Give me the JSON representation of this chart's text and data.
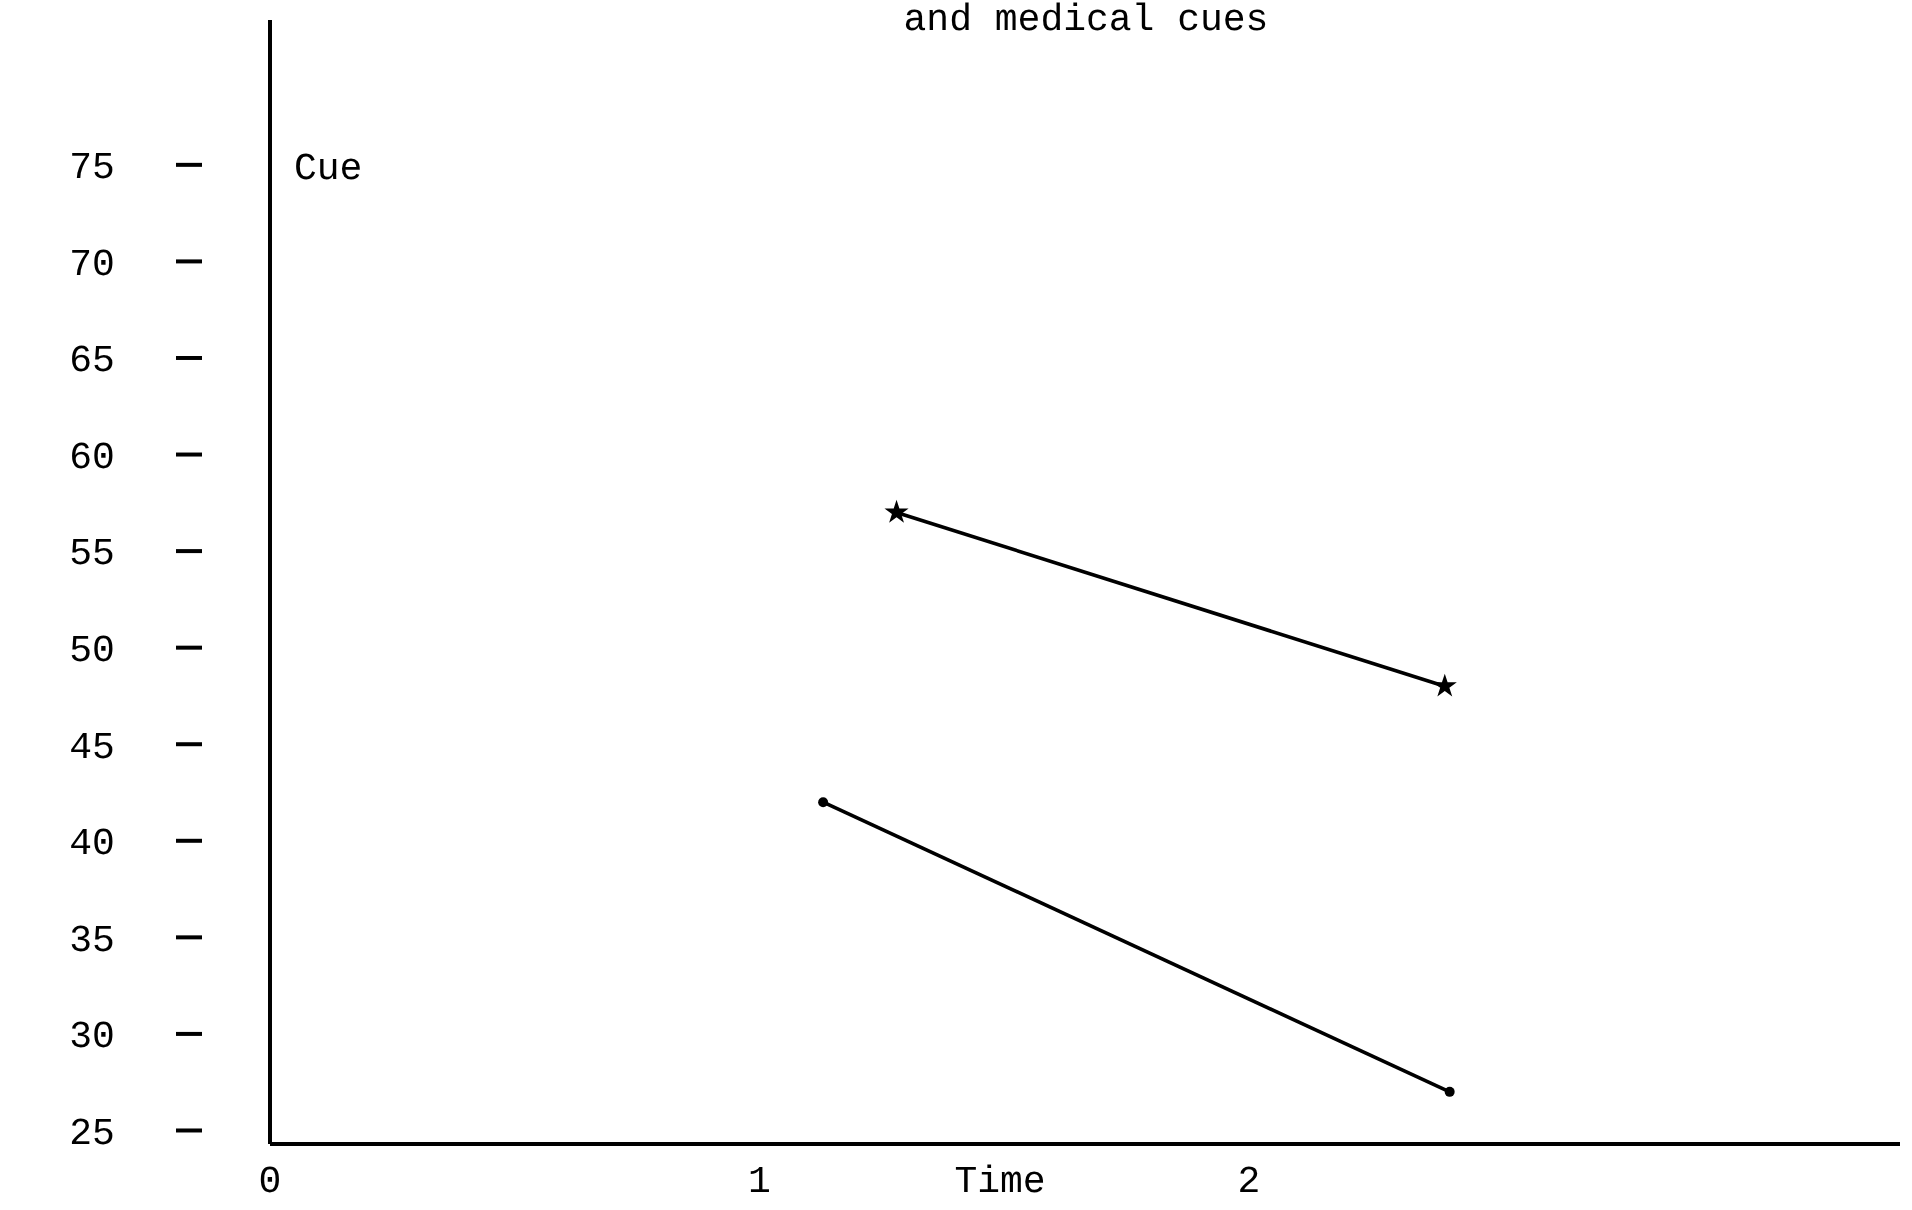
{
  "chart_data": {
    "type": "line",
    "title": "and medical cues",
    "xlabel": "Time",
    "annotations": [
      "Cue"
    ],
    "xlim": [
      0,
      3.33
    ],
    "xticks": [
      0,
      1,
      2
    ],
    "ylim": [
      24.3,
      82.5
    ],
    "yticks": [
      25,
      30,
      35,
      40,
      45,
      50,
      55,
      60,
      65,
      70,
      75
    ],
    "grid": false,
    "line_style": "solid",
    "series": [
      {
        "color": "#000000",
        "marker": "star",
        "x": [
          1.28,
          2.4
        ],
        "values": [
          57,
          48
        ]
      },
      {
        "color": "#000000",
        "marker": "circle",
        "x": [
          1.13,
          2.41
        ],
        "values": [
          42,
          27
        ]
      }
    ]
  }
}
